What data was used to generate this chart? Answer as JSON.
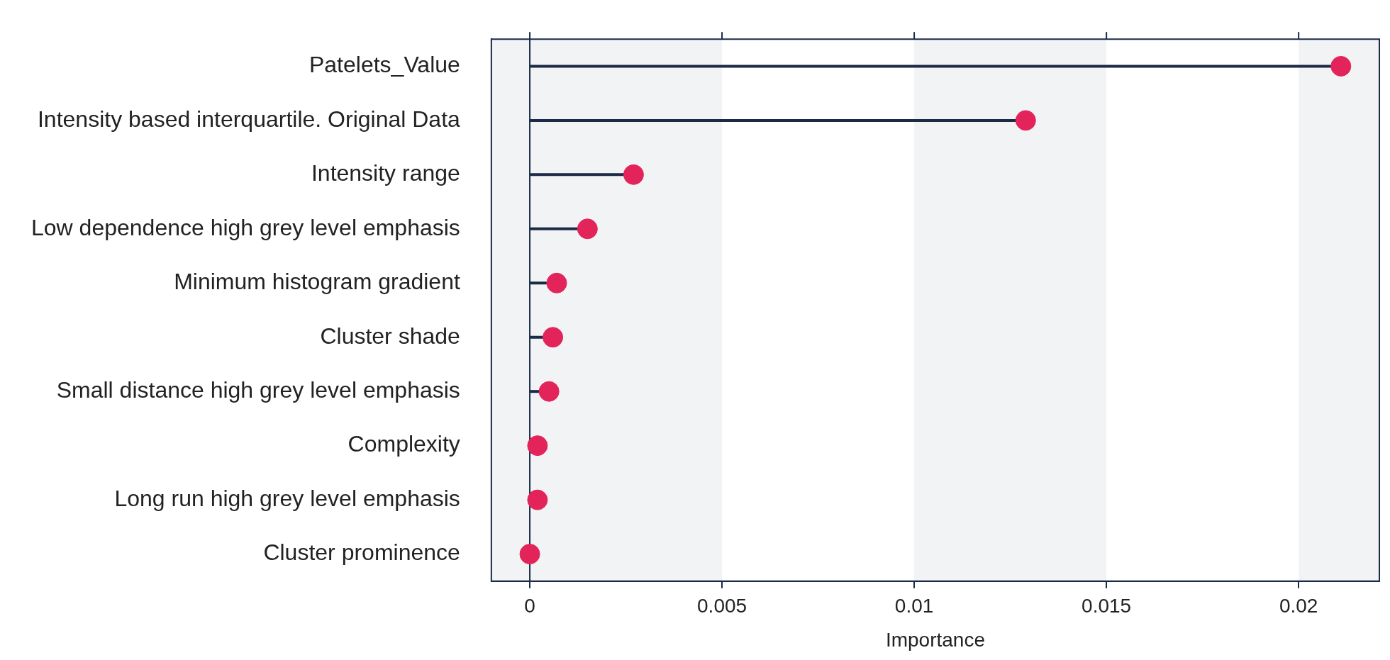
{
  "chart_data": {
    "type": "lollipop",
    "orientation": "horizontal",
    "xlabel": "Importance",
    "categories": [
      "Patelets_Value",
      "Intensity based interquartile. Original Data",
      "Intensity range",
      "Low dependence high grey level emphasis",
      "Minimum histogram gradient",
      "Cluster shade",
      "Small distance high grey level emphasis",
      "Complexity",
      "Long run high grey level emphasis",
      "Cluster prominence"
    ],
    "series": [
      {
        "color": "#e3245a",
        "values": [
          0.0211,
          0.0129,
          0.0027,
          0.0015,
          0.0007,
          0.0006,
          0.0005,
          0.0002,
          0.0002,
          0
        ]
      }
    ],
    "xlim": [
      -0.001,
      0.0221
    ],
    "xticks": [
      0,
      0.005,
      0.01,
      0.015,
      0.02
    ],
    "ref_lines": [
      {
        "axis": "x",
        "value": 0,
        "color": "#1b2a47"
      }
    ],
    "bands": [
      {
        "axis": "x",
        "from": -0.001,
        "to": 0.005,
        "color": "#f2f3f5"
      },
      {
        "axis": "x",
        "from": 0.01,
        "to": 0.015,
        "color": "#f2f3f5"
      },
      {
        "axis": "x",
        "from": 0.02,
        "to": 0.0221,
        "color": "#f2f3f5"
      }
    ],
    "marker": "circle",
    "grid": false,
    "legend": false
  }
}
